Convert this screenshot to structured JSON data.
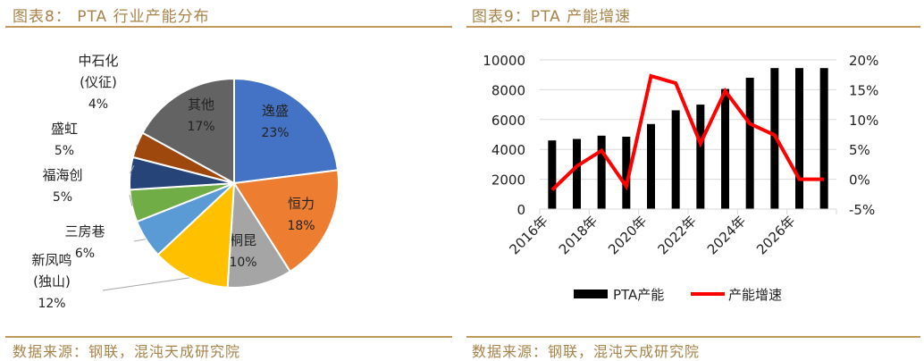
{
  "left": {
    "title": "图表8： PTA 行业产能分布",
    "source": "数据来源：钢联，混沌天成研究院"
  },
  "right": {
    "title": "图表9：PTA 产能增速",
    "source": "数据来源：钢联，混沌天成研究院"
  },
  "chart_data": [
    {
      "type": "pie",
      "title": "PTA 行业产能分布",
      "slices": [
        {
          "label": "逸盛",
          "value": 23,
          "pct": "23%",
          "color": "#4472c4"
        },
        {
          "label": "恒力",
          "value": 18,
          "pct": "18%",
          "color": "#ed7d31"
        },
        {
          "label": "桐昆",
          "value": 10,
          "pct": "10%",
          "color": "#a5a5a5"
        },
        {
          "label": "新凤鸣(独山)",
          "value": 12,
          "pct": "12%",
          "color": "#ffc000"
        },
        {
          "label": "三房巷",
          "value": 6,
          "pct": "6%",
          "color": "#5b9bd5"
        },
        {
          "label": "福海创",
          "value": 5,
          "pct": "5%",
          "color": "#70ad47"
        },
        {
          "label": "盛虹",
          "value": 5,
          "pct": "5%",
          "color": "#264478"
        },
        {
          "label": "中石化(仪征)",
          "value": 4,
          "pct": "4%",
          "color": "#9e480e"
        },
        {
          "label": "其他",
          "value": 17,
          "pct": "17%",
          "color": "#636363"
        }
      ]
    },
    {
      "type": "bar+line",
      "title": "PTA 产能增速",
      "x": [
        "2016年",
        "2017年",
        "2018年",
        "2019年",
        "2020年",
        "2021年",
        "2022年",
        "2023年",
        "2024年",
        "2025年",
        "2026年",
        "2027年"
      ],
      "xticklabels": [
        "2016年",
        "2018年",
        "2020年",
        "2022年",
        "2024年",
        "2026年"
      ],
      "series": [
        {
          "name": "PTA产能",
          "type": "bar",
          "axis": "left",
          "color": "#000000",
          "values": [
            4600,
            4700,
            4920,
            4850,
            5700,
            6620,
            7000,
            8050,
            8800,
            9450,
            9450,
            9450
          ]
        },
        {
          "name": "产能增速",
          "type": "line",
          "axis": "right",
          "color": "#ff0000",
          "values": [
            -1.8,
            2.2,
            4.8,
            -1.2,
            17.3,
            16.1,
            6.0,
            14.8,
            9.3,
            7.4,
            0,
            0
          ]
        }
      ],
      "ylim": [
        0,
        10000
      ],
      "yticks": [
        "0",
        "2000",
        "4000",
        "6000",
        "8000",
        "10000"
      ],
      "y2lim": [
        -5,
        20
      ],
      "y2ticks": [
        "-5%",
        "0%",
        "5%",
        "10%",
        "15%",
        "20%"
      ],
      "grid": true,
      "legend": "bottom"
    }
  ]
}
